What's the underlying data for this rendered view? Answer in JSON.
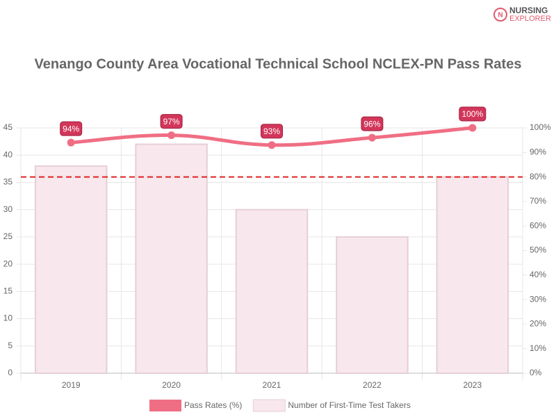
{
  "brand": {
    "line1": "NURSING",
    "line2": "EXPLORER"
  },
  "chart_data": {
    "type": "bar",
    "title": "Venango County Area Vocational Technical School NCLEX-PN Pass Rates",
    "categories": [
      "2019",
      "2020",
      "2021",
      "2022",
      "2023"
    ],
    "series": [
      {
        "name": "Pass Rates (%)",
        "type": "line",
        "axis": "y2",
        "color": "#f06e84",
        "values": [
          94,
          97,
          93,
          96,
          100
        ],
        "value_labels": [
          "94%",
          "97%",
          "93%",
          "96%",
          "100%"
        ]
      },
      {
        "name": "Number of First-Time Test Takers",
        "type": "bar",
        "axis": "y",
        "color": "#f8e7ec",
        "values": [
          38,
          42,
          30,
          25,
          36
        ]
      }
    ],
    "ylim": [
      0,
      45
    ],
    "yticks": [
      0,
      5,
      10,
      15,
      20,
      25,
      30,
      35,
      40,
      45
    ],
    "y2lim": [
      0,
      100
    ],
    "y2ticks": [
      {
        "value": 0,
        "label": "0%"
      },
      {
        "value": 10,
        "label": "10%"
      },
      {
        "value": 20,
        "label": "20%"
      },
      {
        "value": 30,
        "label": "30%"
      },
      {
        "value": 40,
        "label": "40%"
      },
      {
        "value": 50,
        "label": "50%"
      },
      {
        "value": 60,
        "label": "60%"
      },
      {
        "value": 70,
        "label": "70%"
      },
      {
        "value": 80,
        "label": "80%"
      },
      {
        "value": 90,
        "label": "90%"
      },
      {
        "value": 100,
        "label": "100%"
      }
    ],
    "reference_line": {
      "value": 80,
      "axis": "y2",
      "color": "#e02020"
    },
    "grid": true
  }
}
